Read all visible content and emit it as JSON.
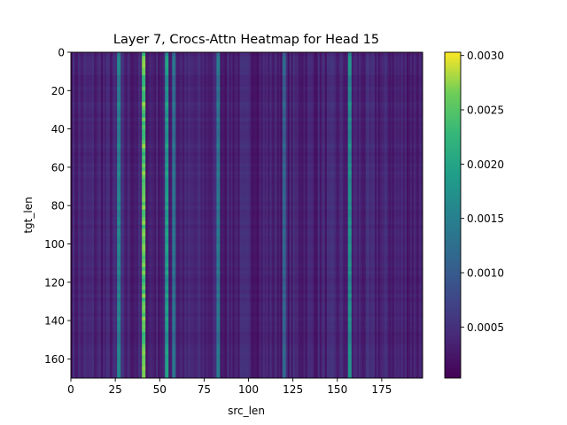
{
  "chart_data": {
    "type": "heatmap",
    "title": "Layer 7, Crocs-Attn Heatmap for Head 15",
    "xlabel": "src_len",
    "ylabel": "tgt_len",
    "x_range": [
      0,
      198
    ],
    "y_range": [
      0,
      170
    ],
    "y_inverted": true,
    "x_ticks": [
      "0",
      "25",
      "50",
      "75",
      "100",
      "125",
      "150",
      "175"
    ],
    "y_ticks": [
      "0",
      "20",
      "40",
      "60",
      "80",
      "100",
      "120",
      "140",
      "160"
    ],
    "colormap": "viridis",
    "colorbar": {
      "range": [
        3e-05,
        0.00303
      ],
      "ticks": [
        "0.0005",
        "0.0010",
        "0.0015",
        "0.0020",
        "0.0025",
        "0.0030"
      ]
    },
    "column_profile_note": "columns carry nearly constant attention across all target rows",
    "column_peaks": [
      {
        "src": 27,
        "value": 0.0018
      },
      {
        "src": 41,
        "value": 0.003
      },
      {
        "src": 54,
        "value": 0.0022
      },
      {
        "src": 58,
        "value": 0.0015
      },
      {
        "src": 83,
        "value": 0.0016
      },
      {
        "src": 120,
        "value": 0.0013
      },
      {
        "src": 157,
        "value": 0.002
      }
    ],
    "baseline_value": 0.0004,
    "grid": false,
    "legend": "none"
  }
}
